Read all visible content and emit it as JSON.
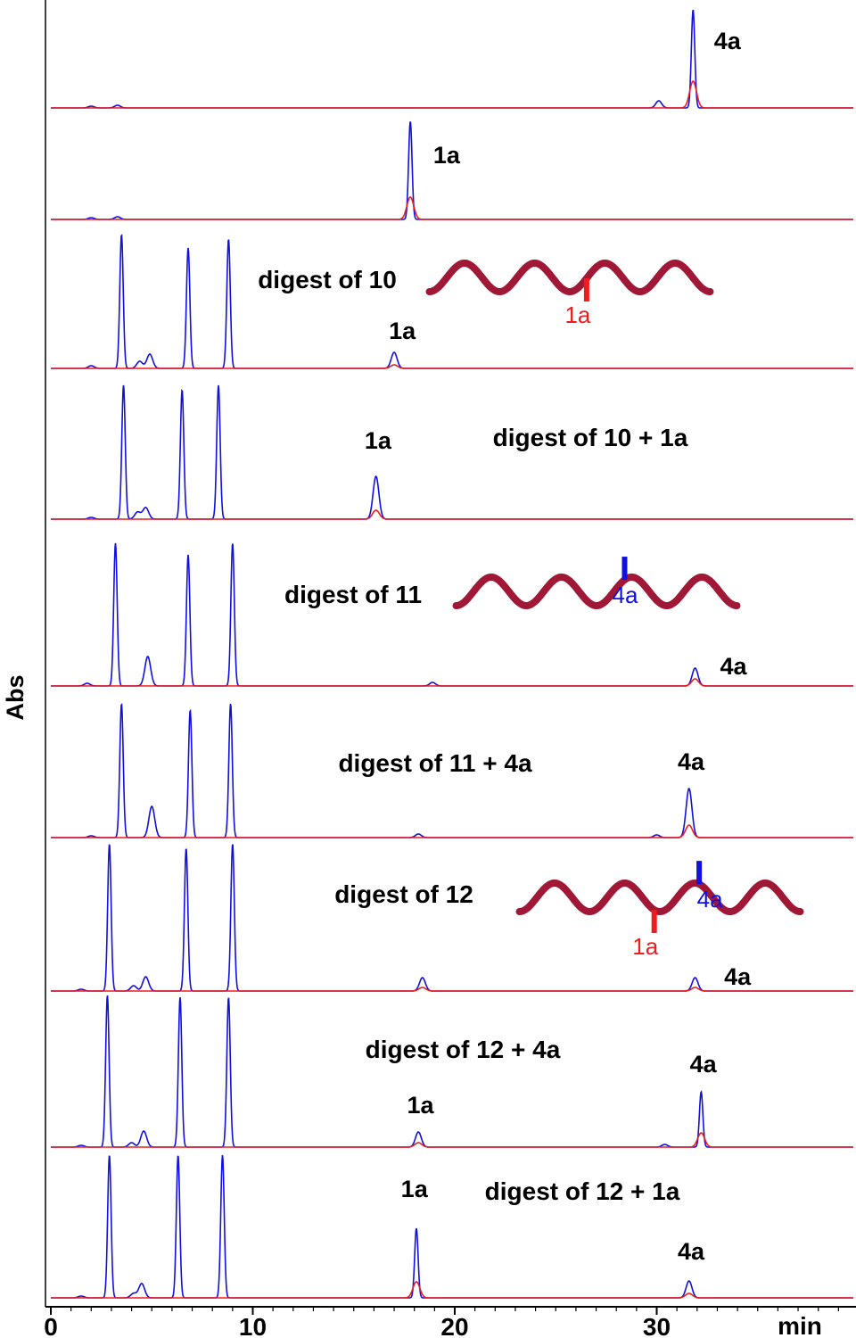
{
  "colors": {
    "blue": "#1010e0",
    "red": "#ee1c1c",
    "helix": "#a01836",
    "axis": "#000000"
  },
  "chart_data": {
    "type": "line",
    "title": "",
    "xlabel": "min",
    "ylabel": "Abs",
    "xlim": [
      0,
      40
    ],
    "x_ticks": [
      0,
      10,
      20,
      30
    ],
    "x_tick_labels": [
      "0",
      "10",
      "20",
      "30"
    ],
    "series": [
      {
        "name": "blue"
      },
      {
        "name": "red"
      }
    ],
    "traces": [
      {
        "label": "",
        "peaks_blue": [
          [
            2.0,
            2
          ],
          [
            3.3,
            3
          ],
          [
            30.1,
            8
          ],
          [
            31.8,
            110
          ]
        ],
        "peaks_red": [
          [
            31.8,
            30
          ]
        ],
        "annotations": [
          {
            "text": "4a",
            "x": 33.5,
            "y": 75
          }
        ],
        "helix": null
      },
      {
        "label": "",
        "peaks_blue": [
          [
            2.0,
            2
          ],
          [
            3.3,
            3
          ],
          [
            17.8,
            110
          ]
        ],
        "peaks_red": [
          [
            17.8,
            25
          ]
        ],
        "annotations": [
          {
            "text": "1a",
            "x": 19.6,
            "y": 72
          }
        ],
        "helix": null
      },
      {
        "label": "digest of 10",
        "peaks_blue": [
          [
            2.0,
            3
          ],
          [
            3.5,
            150
          ],
          [
            4.4,
            8
          ],
          [
            4.9,
            16
          ],
          [
            6.8,
            135
          ],
          [
            8.8,
            145
          ],
          [
            17.0,
            18
          ]
        ],
        "peaks_red": [
          [
            17.0,
            4
          ]
        ],
        "annotations": [
          {
            "text": "1a",
            "x": 17.4,
            "y": 42
          }
        ],
        "helix": {
          "marks": [
            {
              "text": "1a",
              "color": "red",
              "pos": 0.56
            }
          ]
        }
      },
      {
        "label": "digest of 10 + 1a",
        "peaks_blue": [
          [
            2.0,
            2
          ],
          [
            3.6,
            150
          ],
          [
            4.3,
            8
          ],
          [
            4.7,
            13
          ],
          [
            6.5,
            145
          ],
          [
            8.3,
            150
          ],
          [
            16.1,
            48
          ]
        ],
        "peaks_red": [
          [
            16.1,
            10
          ]
        ],
        "annotations": [
          {
            "text": "1a",
            "x": 16.2,
            "y": 88
          }
        ],
        "helix": null
      },
      {
        "label": "digest of 11",
        "peaks_blue": [
          [
            1.8,
            3
          ],
          [
            3.2,
            160
          ],
          [
            4.8,
            33
          ],
          [
            6.8,
            147
          ],
          [
            9.0,
            160
          ],
          [
            18.9,
            4
          ],
          [
            31.9,
            20
          ]
        ],
        "peaks_red": [
          [
            31.9,
            8
          ]
        ],
        "annotations": [
          {
            "text": "4a",
            "x": 33.8,
            "y": 22
          }
        ],
        "helix": {
          "marks": [
            {
              "text": "4a",
              "color": "blue",
              "pos": 0.6
            }
          ]
        }
      },
      {
        "label": "digest of 11 + 4a",
        "peaks_blue": [
          [
            2.0,
            2
          ],
          [
            3.5,
            150
          ],
          [
            5.0,
            35
          ],
          [
            6.9,
            143
          ],
          [
            8.9,
            150
          ],
          [
            18.2,
            4
          ],
          [
            30.0,
            3
          ],
          [
            31.6,
            55
          ]
        ],
        "peaks_red": [
          [
            31.6,
            14
          ]
        ],
        "annotations": [
          {
            "text": "4a",
            "x": 31.7,
            "y": 85
          }
        ],
        "helix": null
      },
      {
        "label": "digest of 12",
        "peaks_blue": [
          [
            1.5,
            2
          ],
          [
            2.9,
            165
          ],
          [
            4.1,
            6
          ],
          [
            4.7,
            16
          ],
          [
            6.7,
            160
          ],
          [
            9.0,
            165
          ],
          [
            18.4,
            15
          ],
          [
            31.9,
            15
          ]
        ],
        "peaks_red": [
          [
            18.4,
            4
          ],
          [
            31.9,
            4
          ]
        ],
        "annotations": [
          {
            "text": "4a",
            "x": 34.0,
            "y": 16
          }
        ],
        "helix": {
          "marks": [
            {
              "text": "1a",
              "color": "red",
              "pos": 0.48
            },
            {
              "text": "4a",
              "color": "blue",
              "pos": 0.64
            }
          ]
        }
      },
      {
        "label": "digest of 12 + 4a",
        "peaks_blue": [
          [
            1.5,
            2
          ],
          [
            2.8,
            170
          ],
          [
            4.0,
            5
          ],
          [
            4.6,
            18
          ],
          [
            6.4,
            168
          ],
          [
            8.8,
            168
          ],
          [
            18.2,
            17
          ],
          [
            30.4,
            3
          ],
          [
            32.2,
            62
          ]
        ],
        "peaks_red": [
          [
            18.2,
            5
          ],
          [
            32.2,
            16
          ]
        ],
        "annotations": [
          {
            "text": "1a",
            "x": 18.3,
            "y": 47
          },
          {
            "text": "4a",
            "x": 32.3,
            "y": 93
          }
        ],
        "helix": null
      },
      {
        "label": "digest of 12 + 1a",
        "peaks_blue": [
          [
            1.5,
            2
          ],
          [
            2.9,
            160
          ],
          [
            4.1,
            5
          ],
          [
            4.5,
            16
          ],
          [
            6.3,
            160
          ],
          [
            8.5,
            160
          ],
          [
            18.1,
            78
          ],
          [
            31.6,
            19
          ]
        ],
        "peaks_red": [
          [
            18.1,
            18
          ],
          [
            31.6,
            5
          ]
        ],
        "annotations": [
          {
            "text": "1a",
            "x": 18.0,
            "y": 122
          },
          {
            "text": "4a",
            "x": 31.7,
            "y": 52
          }
        ],
        "helix": null
      }
    ]
  }
}
